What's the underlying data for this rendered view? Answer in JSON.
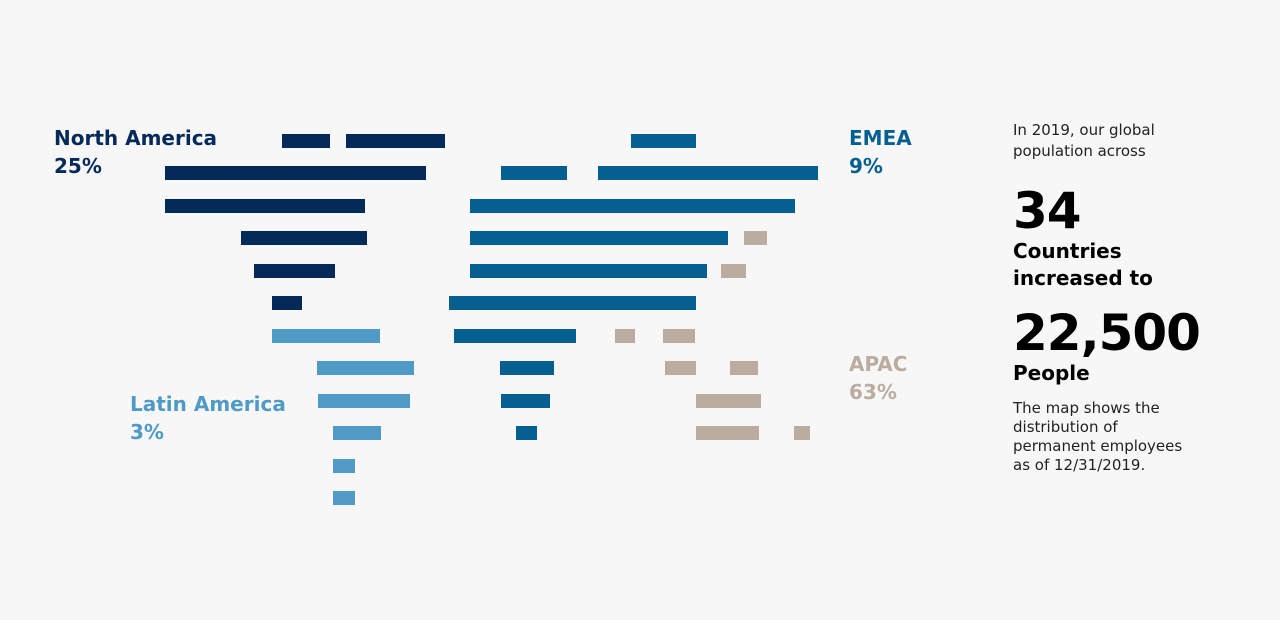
{
  "colors": {
    "north_america": "#042a5a",
    "emea": "#065f91",
    "latin_america": "#4f9bc6",
    "apac": "#baada0"
  },
  "regions": {
    "north_america": {
      "name": "North America",
      "percent": "25%"
    },
    "emea": {
      "name": "EMEA",
      "percent": "9%"
    },
    "latin_america": {
      "name": "Latin America",
      "percent": "3%"
    },
    "apac": {
      "name": "APAC",
      "percent": "63%"
    }
  },
  "sidebar": {
    "intro": "In 2019, our global population across",
    "countries_value": "34",
    "countries_label": "Countries increased to",
    "people_value": "22,500",
    "people_label": "People",
    "note": "The map shows the distribution of permanent employees as of 12/31/2019."
  }
}
